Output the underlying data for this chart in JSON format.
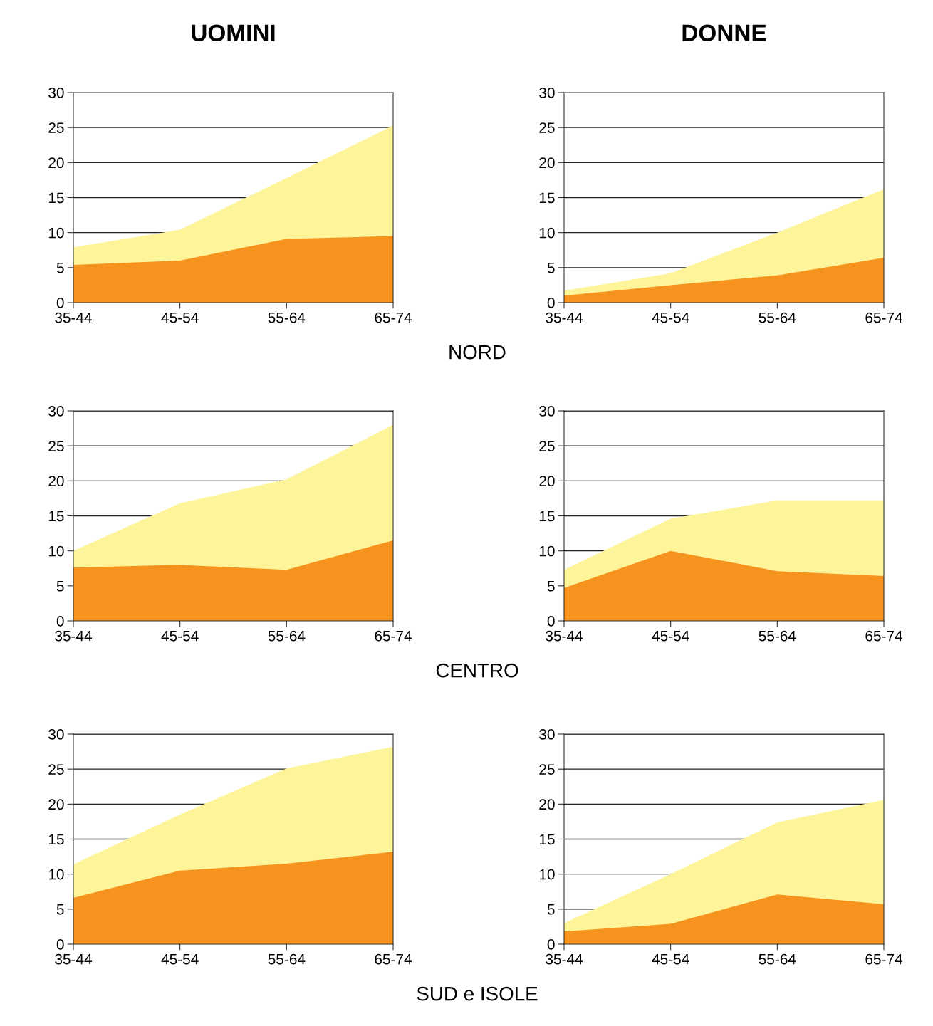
{
  "chart_data": [
    {
      "type": "area",
      "title": "UOMINI",
      "annotations": [
        "NORD"
      ],
      "categories": [
        "35-44",
        "45-54",
        "55-64",
        "65-74"
      ],
      "ylim": [
        0,
        30
      ],
      "yticks": [
        0,
        5,
        10,
        15,
        20,
        25,
        30
      ],
      "grid": "y",
      "legend": false,
      "series": [
        {
          "color": "#fef59b",
          "values": [
            7.9,
            10.4,
            17.8,
            25.3
          ]
        },
        {
          "color": "#f6921e",
          "values": [
            5.4,
            6.0,
            9.1,
            9.5
          ]
        }
      ]
    },
    {
      "type": "area",
      "title": "DONNE",
      "categories": [
        "35-44",
        "45-54",
        "55-64",
        "65-74"
      ],
      "ylim": [
        0,
        30
      ],
      "yticks": [
        0,
        5,
        10,
        15,
        20,
        25,
        30
      ],
      "grid": "y",
      "legend": false,
      "series": [
        {
          "color": "#fef59b",
          "values": [
            1.7,
            4.2,
            10.0,
            16.2
          ]
        },
        {
          "color": "#f6921e",
          "values": [
            1.0,
            2.5,
            3.9,
            6.4
          ]
        }
      ]
    },
    {
      "type": "area",
      "annotations": [
        "CENTRO"
      ],
      "categories": [
        "35-44",
        "45-54",
        "55-64",
        "65-74"
      ],
      "ylim": [
        0,
        30
      ],
      "yticks": [
        0,
        5,
        10,
        15,
        20,
        25,
        30
      ],
      "grid": "y",
      "legend": false,
      "series": [
        {
          "color": "#fef59b",
          "values": [
            10.0,
            16.8,
            20.2,
            28.0
          ]
        },
        {
          "color": "#f6921e",
          "values": [
            7.6,
            8.0,
            7.3,
            11.5
          ]
        }
      ]
    },
    {
      "type": "area",
      "categories": [
        "35-44",
        "45-54",
        "55-64",
        "65-74"
      ],
      "ylim": [
        0,
        30
      ],
      "yticks": [
        0,
        5,
        10,
        15,
        20,
        25,
        30
      ],
      "grid": "y",
      "legend": false,
      "series": [
        {
          "color": "#fef59b",
          "values": [
            7.3,
            14.6,
            17.2,
            17.2
          ]
        },
        {
          "color": "#f6921e",
          "values": [
            4.7,
            10.0,
            7.1,
            6.4
          ]
        }
      ]
    },
    {
      "type": "area",
      "annotations": [
        "SUD e ISOLE"
      ],
      "categories": [
        "35-44",
        "45-54",
        "55-64",
        "65-74"
      ],
      "ylim": [
        0,
        30
      ],
      "yticks": [
        0,
        5,
        10,
        15,
        20,
        25,
        30
      ],
      "grid": "y",
      "legend": false,
      "series": [
        {
          "color": "#fef59b",
          "values": [
            11.4,
            18.5,
            25.1,
            28.2
          ]
        },
        {
          "color": "#f6921e",
          "values": [
            6.6,
            10.5,
            11.5,
            13.2
          ]
        }
      ]
    },
    {
      "type": "area",
      "categories": [
        "35-44",
        "45-54",
        "55-64",
        "65-74"
      ],
      "ylim": [
        0,
        30
      ],
      "yticks": [
        0,
        5,
        10,
        15,
        20,
        25,
        30
      ],
      "grid": "y",
      "legend": false,
      "series": [
        {
          "color": "#fef59b",
          "values": [
            3.0,
            10.0,
            17.4,
            20.6
          ]
        },
        {
          "color": "#f6921e",
          "values": [
            1.8,
            2.9,
            7.1,
            5.7
          ]
        }
      ]
    }
  ]
}
